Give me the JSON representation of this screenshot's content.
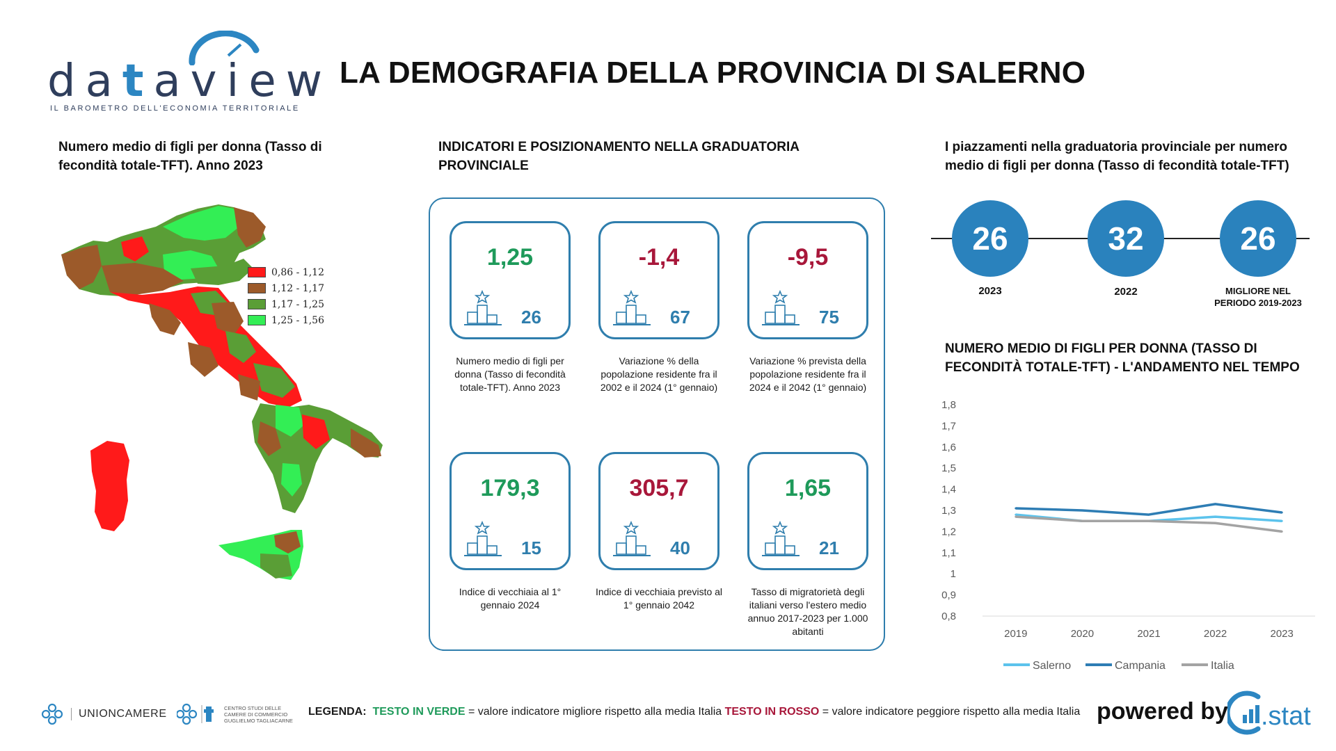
{
  "header": {
    "logo_pre": "da",
    "logo_t": "t",
    "logo_post": "aview",
    "logo_subtitle": "IL BAROMETRO DELL'ECONOMIA TERRITORIALE",
    "title": "LA DEMOGRAFIA DELLA PROVINCIA DI SALERNO"
  },
  "map": {
    "title": "Numero medio di figli per donna (Tasso di fecondità totale-TFT). Anno 2023",
    "legend": [
      {
        "label": "0,86 - 1,12",
        "color": "#ff1a1a"
      },
      {
        "label": "1,12 - 1,17",
        "color": "#9c5a2a"
      },
      {
        "label": "1,17 - 1,25",
        "color": "#5a9e36"
      },
      {
        "label": "1,25 - 1,56",
        "color": "#33ee55"
      }
    ]
  },
  "indicators": {
    "title": "INDICATORI E POSIZIONAMENTO NELLA GRADUATORIA PROVINCIALE",
    "cards": [
      {
        "value": "1,25",
        "color": "green",
        "rank": "26",
        "desc": "Numero medio di figli per donna (Tasso di fecondità totale-TFT). Anno 2023"
      },
      {
        "value": "-1,4",
        "color": "red",
        "rank": "67",
        "desc": "Variazione % della popolazione residente fra il 2002 e il 2024 (1° gennaio)"
      },
      {
        "value": "-9,5",
        "color": "red",
        "rank": "75",
        "desc": "Variazione % prevista della popolazione residente fra il 2024 e il 2042 (1° gennaio)"
      },
      {
        "value": "179,3",
        "color": "green",
        "rank": "15",
        "desc": "Indice di vecchiaia al 1° gennaio 2024"
      },
      {
        "value": "305,7",
        "color": "red",
        "rank": "40",
        "desc": "Indice di vecchiaia previsto al 1° gennaio 2042"
      },
      {
        "value": "1,65",
        "color": "green",
        "rank": "21",
        "desc": "Tasso di migratorietà degli italiani verso l'estero medio annuo 2017-2023 per 1.000 abitanti"
      }
    ]
  },
  "ranking": {
    "title": "I piazzamenti nella graduatoria provinciale per numero medio di figli per donna (Tasso di fecondità totale-TFT)",
    "items": [
      {
        "value": "26",
        "label": "2023"
      },
      {
        "value": "32",
        "label": "2022"
      },
      {
        "value": "26",
        "label": "MIGLIORE NEL PERIODO 2019-2023"
      }
    ]
  },
  "chart_data": {
    "type": "line",
    "title": "NUMERO MEDIO DI FIGLI PER DONNA (TASSO DI FECONDITÀ TOTALE-TFT) - L'ANDAMENTO NEL TEMPO",
    "xlabel": "",
    "ylabel": "",
    "x": [
      "2019",
      "2020",
      "2021",
      "2022",
      "2023"
    ],
    "ylim": [
      0.8,
      1.8
    ],
    "yticks": [
      "1,8",
      "1,7",
      "1,6",
      "1,5",
      "1,4",
      "1,3",
      "1,2",
      "1,1",
      "1",
      "0,9",
      "0,8"
    ],
    "legend_position": "bottom",
    "grid": false,
    "series": [
      {
        "name": "Salerno",
        "color": "#5cc3ec",
        "values": [
          1.28,
          1.25,
          1.25,
          1.27,
          1.25
        ]
      },
      {
        "name": "Campania",
        "color": "#2e7db4",
        "values": [
          1.31,
          1.3,
          1.28,
          1.33,
          1.29
        ]
      },
      {
        "name": "Italia",
        "color": "#a3a3a3",
        "values": [
          1.27,
          1.25,
          1.25,
          1.24,
          1.2
        ]
      }
    ]
  },
  "footer": {
    "unioncamere": "UNIONCAMERE",
    "centro_studi": "CENTRO STUDI DELLE CAMERE DI COMMERCIO GUGLIELMO TAGLIACARNE",
    "legend_label": "LEGENDA:",
    "legend_green": "TESTO IN VERDE",
    "legend_green_desc": " = valore indicatore migliore rispetto alla media Italia ",
    "legend_red": "TESTO IN ROSSO",
    "legend_red_desc": " = valore indicatore peggiore rispetto alla media Italia",
    "powered_by": "powered by",
    "cstat": ".stat"
  }
}
